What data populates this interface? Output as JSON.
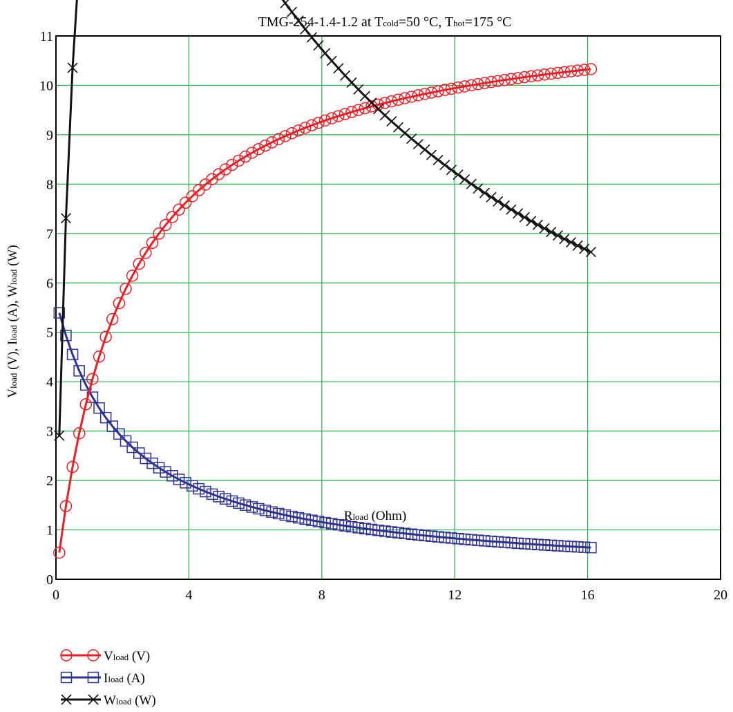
{
  "chart_data": {
    "type": "line",
    "title": {
      "prefix": "TMG-254-1.4-1.2 at T",
      "sub1": "cold",
      "mid": "=50 °C, T",
      "sub2": "hot",
      "suffix": "=175 °C"
    },
    "xlabel": {
      "main": "R",
      "sub": "load",
      "rest": " (Ohm)"
    },
    "ylabel": [
      {
        "main": "V",
        "sub": "load",
        "rest": " (V), "
      },
      {
        "main": "I",
        "sub": "load",
        "rest": " (A), "
      },
      {
        "main": "W",
        "sub": "load",
        "rest": " (W)"
      }
    ],
    "xlim": [
      0,
      20
    ],
    "ylim": [
      0,
      11
    ],
    "xticks": [
      "0",
      "4",
      "8",
      "12",
      "16",
      "20"
    ],
    "yticks": [
      "0",
      "1",
      "2",
      "3",
      "4",
      "5",
      "6",
      "7",
      "8",
      "9",
      "10",
      "11"
    ],
    "grid": true,
    "legend_position": "bottom-left",
    "x": [
      0.1,
      0.3,
      0.5,
      0.7,
      0.9,
      1.1,
      1.3,
      1.5,
      1.7,
      1.9,
      2.1,
      2.3,
      2.5,
      2.7,
      2.9,
      3.1,
      3.3,
      3.5,
      3.7,
      3.9,
      4.1,
      4.3,
      4.5,
      4.7,
      4.9,
      5.1,
      5.3,
      5.5,
      5.7,
      5.9,
      6.1,
      6.3,
      6.5,
      6.7,
      6.9,
      7.1,
      7.3,
      7.5,
      7.7,
      7.9,
      8.1,
      8.3,
      8.5,
      8.7,
      8.9,
      9.1,
      9.3,
      9.5,
      9.7,
      9.9,
      10.1,
      10.3,
      10.5,
      10.7,
      10.9,
      11.1,
      11.3,
      11.5,
      11.7,
      11.9,
      12.1,
      12.3,
      12.5,
      12.7,
      12.9,
      13.1,
      13.3,
      13.5,
      13.7,
      13.9,
      14.1,
      14.3,
      14.5,
      14.7,
      14.9,
      15.1,
      15.3,
      15.5,
      15.7,
      15.9,
      16.1
    ],
    "series": [
      {
        "name": {
          "main": "V",
          "sub": "load",
          "rest": " (V)"
        },
        "color": "#ee1c24",
        "marker": "circle",
        "voc": 11.65,
        "rint": 2.06
      },
      {
        "name": {
          "main": "I",
          "sub": "load",
          "rest": " (A)"
        },
        "color": "#2e3192",
        "marker": "square",
        "voc": 11.65,
        "rint": 2.06
      },
      {
        "name": {
          "main": "W",
          "sub": "load",
          "rest": " (W)"
        },
        "color": "#111111",
        "marker": "x",
        "voc": 11.65,
        "rint": 2.06
      }
    ]
  }
}
